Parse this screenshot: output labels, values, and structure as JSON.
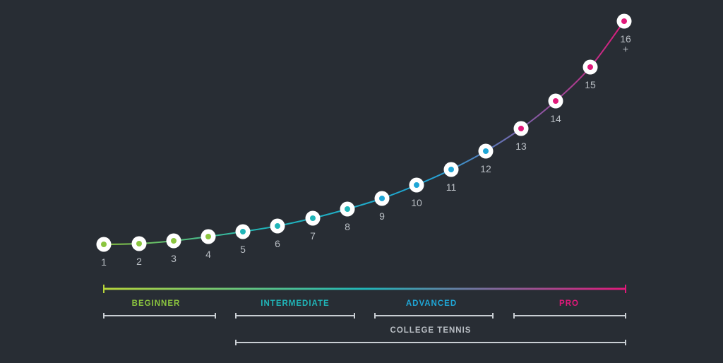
{
  "levels": [
    {
      "label": "1",
      "color": "#8bc53f"
    },
    {
      "label": "2",
      "color": "#8bc53f"
    },
    {
      "label": "3",
      "color": "#8bc53f"
    },
    {
      "label": "4",
      "color": "#8bc53f"
    },
    {
      "label": "5",
      "color": "#20b5b8"
    },
    {
      "label": "6",
      "color": "#20b5b8"
    },
    {
      "label": "7",
      "color": "#20b5b8"
    },
    {
      "label": "8",
      "color": "#20b5b8"
    },
    {
      "label": "9",
      "color": "#1fa6d6"
    },
    {
      "label": "10",
      "color": "#1fa6d6"
    },
    {
      "label": "11",
      "color": "#1fa6d6"
    },
    {
      "label": "12",
      "color": "#1fa6d6"
    },
    {
      "label": "13",
      "color": "#e0197a"
    },
    {
      "label": "14",
      "color": "#e0197a"
    },
    {
      "label": "15",
      "color": "#e0197a"
    },
    {
      "label": "16",
      "sub": "+",
      "color": "#e0197a"
    }
  ],
  "bands": [
    {
      "label": "BEGINNER",
      "color": "#8bc53f"
    },
    {
      "label": "INTERMEDIATE",
      "color": "#20b5b8"
    },
    {
      "label": "ADVANCED",
      "color": "#1fa6d6"
    },
    {
      "label": "PRO",
      "color": "#e0197a"
    },
    {
      "label": "COLLEGE TENNIS",
      "color": "#b9bec4"
    }
  ],
  "colors": {
    "background": "#282d34",
    "bracket": "#c9ced3",
    "node_fill": "#ffffff",
    "gradient_start": "#b6d33a",
    "gradient_mid": "#20b5b8",
    "gradient_end": "#e0197a"
  }
}
